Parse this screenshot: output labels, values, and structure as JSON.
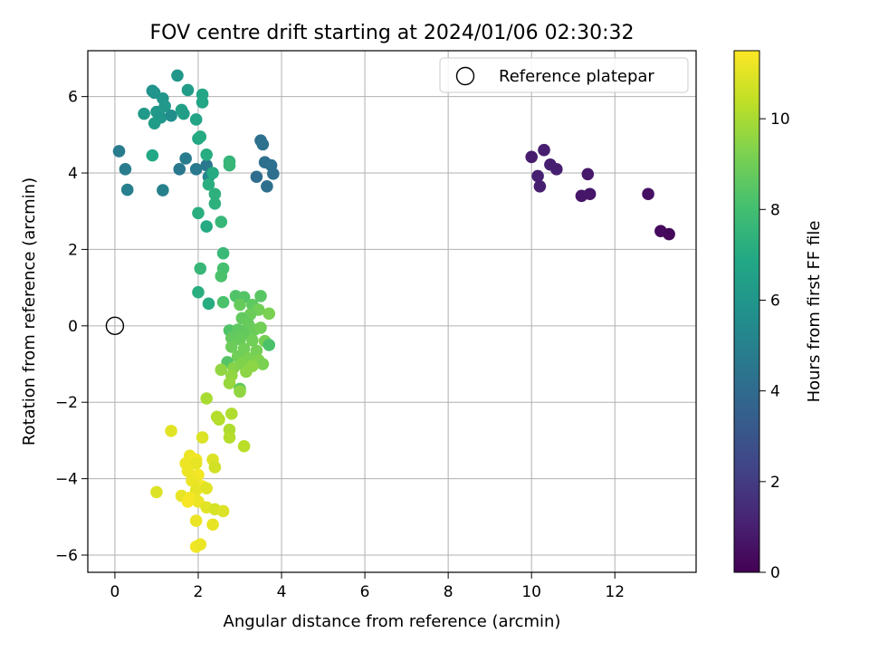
{
  "chart_data": {
    "type": "scatter",
    "title": "FOV centre drift starting at 2024/01/06 02:30:32",
    "xlabel": "Angular distance from reference (arcmin)",
    "ylabel": "Rotation from reference (arcmin)",
    "xlim": [
      -0.65,
      13.95
    ],
    "ylim": [
      -6.45,
      7.2
    ],
    "x_ticks": [
      0,
      2,
      4,
      6,
      8,
      10,
      12
    ],
    "x_tick_labels": [
      "0",
      "2",
      "4",
      "6",
      "8",
      "10",
      "12"
    ],
    "y_ticks": [
      -6,
      -4,
      -2,
      0,
      2,
      4,
      6
    ],
    "y_tick_labels": [
      "−6",
      "−4",
      "−2",
      "0",
      "2",
      "4",
      "6"
    ],
    "grid": true,
    "legend": {
      "placement": "top-right",
      "entries": [
        "Reference platepar"
      ]
    },
    "reference_point": {
      "label": "Reference platepar",
      "x": 0,
      "y": 0
    },
    "colorbar": {
      "label": "Hours from first FF file",
      "colormap": "viridis",
      "range": [
        0,
        11.5
      ],
      "ticks": [
        0,
        2,
        4,
        6,
        8,
        10
      ],
      "tick_labels": [
        "0",
        "2",
        "4",
        "6",
        "8",
        "10"
      ]
    },
    "points": [
      {
        "x": 10.0,
        "y": 4.42,
        "h": 0.9
      },
      {
        "x": 10.3,
        "y": 4.6,
        "h": 1.0
      },
      {
        "x": 10.45,
        "y": 4.22,
        "h": 1.0
      },
      {
        "x": 10.15,
        "y": 3.92,
        "h": 1.0
      },
      {
        "x": 10.6,
        "y": 4.1,
        "h": 1.0
      },
      {
        "x": 10.2,
        "y": 3.65,
        "h": 1.0
      },
      {
        "x": 11.35,
        "y": 3.97,
        "h": 0.8
      },
      {
        "x": 11.2,
        "y": 3.4,
        "h": 0.7
      },
      {
        "x": 11.4,
        "y": 3.45,
        "h": 0.7
      },
      {
        "x": 12.8,
        "y": 3.45,
        "h": 0.5
      },
      {
        "x": 13.1,
        "y": 2.48,
        "h": 0.3
      },
      {
        "x": 13.3,
        "y": 2.4,
        "h": 0.2
      },
      {
        "x": 3.5,
        "y": 4.85,
        "h": 4.2
      },
      {
        "x": 3.55,
        "y": 4.75,
        "h": 4.3
      },
      {
        "x": 3.6,
        "y": 4.28,
        "h": 4.2
      },
      {
        "x": 3.75,
        "y": 4.2,
        "h": 4.3
      },
      {
        "x": 3.4,
        "y": 3.9,
        "h": 4.1
      },
      {
        "x": 3.65,
        "y": 3.65,
        "h": 4.2
      },
      {
        "x": 3.8,
        "y": 3.98,
        "h": 4.2
      },
      {
        "x": 2.2,
        "y": 4.2,
        "h": 4.6
      },
      {
        "x": 1.95,
        "y": 4.1,
        "h": 4.7
      },
      {
        "x": 1.55,
        "y": 4.1,
        "h": 4.6
      },
      {
        "x": 1.7,
        "y": 4.38,
        "h": 4.8
      },
      {
        "x": 0.1,
        "y": 4.57,
        "h": 4.8
      },
      {
        "x": 0.25,
        "y": 4.1,
        "h": 4.8
      },
      {
        "x": 0.3,
        "y": 3.56,
        "h": 4.9
      },
      {
        "x": 1.15,
        "y": 3.55,
        "h": 5.0
      },
      {
        "x": 2.25,
        "y": 3.9,
        "h": 5.2
      },
      {
        "x": 0.9,
        "y": 6.15,
        "h": 5.8
      },
      {
        "x": 0.95,
        "y": 6.1,
        "h": 5.9
      },
      {
        "x": 1.5,
        "y": 6.55,
        "h": 6.0
      },
      {
        "x": 1.75,
        "y": 6.17,
        "h": 6.3
      },
      {
        "x": 2.1,
        "y": 6.05,
        "h": 6.8
      },
      {
        "x": 2.1,
        "y": 5.85,
        "h": 6.8
      },
      {
        "x": 1.15,
        "y": 5.95,
        "h": 6.0
      },
      {
        "x": 1.2,
        "y": 5.75,
        "h": 6.1
      },
      {
        "x": 0.7,
        "y": 5.55,
        "h": 6.2
      },
      {
        "x": 1.0,
        "y": 5.6,
        "h": 6.1
      },
      {
        "x": 1.05,
        "y": 5.55,
        "h": 6.2
      },
      {
        "x": 1.1,
        "y": 5.45,
        "h": 6.0
      },
      {
        "x": 1.35,
        "y": 5.5,
        "h": 5.6
      },
      {
        "x": 1.6,
        "y": 5.65,
        "h": 6.5
      },
      {
        "x": 1.65,
        "y": 5.55,
        "h": 6.4
      },
      {
        "x": 1.95,
        "y": 5.4,
        "h": 6.7
      },
      {
        "x": 0.95,
        "y": 5.3,
        "h": 6.3
      },
      {
        "x": 2.0,
        "y": 4.9,
        "h": 6.8
      },
      {
        "x": 2.05,
        "y": 4.95,
        "h": 7.0
      },
      {
        "x": 0.9,
        "y": 4.46,
        "h": 6.9
      },
      {
        "x": 2.2,
        "y": 4.48,
        "h": 7.1
      },
      {
        "x": 2.35,
        "y": 4.0,
        "h": 7.0
      },
      {
        "x": 2.75,
        "y": 4.3,
        "h": 7.5
      },
      {
        "x": 2.75,
        "y": 4.2,
        "h": 7.6
      },
      {
        "x": 2.25,
        "y": 3.7,
        "h": 7.2
      },
      {
        "x": 2.4,
        "y": 3.45,
        "h": 7.3
      },
      {
        "x": 2.4,
        "y": 3.2,
        "h": 7.3
      },
      {
        "x": 2.0,
        "y": 2.95,
        "h": 7.2
      },
      {
        "x": 2.2,
        "y": 2.6,
        "h": 7.0
      },
      {
        "x": 2.55,
        "y": 2.72,
        "h": 7.6
      },
      {
        "x": 2.6,
        "y": 1.9,
        "h": 7.7
      },
      {
        "x": 2.05,
        "y": 1.5,
        "h": 7.6
      },
      {
        "x": 2.6,
        "y": 1.5,
        "h": 8.1
      },
      {
        "x": 2.55,
        "y": 1.3,
        "h": 8.2
      },
      {
        "x": 2.0,
        "y": 0.88,
        "h": 7.2
      },
      {
        "x": 2.25,
        "y": 0.58,
        "h": 7.1
      },
      {
        "x": 2.6,
        "y": 0.62,
        "h": 8.2
      },
      {
        "x": 2.9,
        "y": 0.78,
        "h": 8.3
      },
      {
        "x": 3.1,
        "y": 0.75,
        "h": 8.4
      },
      {
        "x": 3.5,
        "y": 0.78,
        "h": 8.5
      },
      {
        "x": 3.3,
        "y": 0.55,
        "h": 8.6
      },
      {
        "x": 3.0,
        "y": 0.55,
        "h": 8.8
      },
      {
        "x": 3.45,
        "y": 0.42,
        "h": 9.0
      },
      {
        "x": 3.7,
        "y": 0.32,
        "h": 9.2
      },
      {
        "x": 3.25,
        "y": 0.3,
        "h": 8.9
      },
      {
        "x": 3.05,
        "y": 0.2,
        "h": 8.7
      },
      {
        "x": 3.2,
        "y": 0.05,
        "h": 8.8
      },
      {
        "x": 2.75,
        "y": -0.12,
        "h": 8.3
      },
      {
        "x": 2.95,
        "y": -0.1,
        "h": 8.6
      },
      {
        "x": 3.1,
        "y": -0.2,
        "h": 8.7
      },
      {
        "x": 3.35,
        "y": -0.1,
        "h": 8.9
      },
      {
        "x": 3.5,
        "y": -0.05,
        "h": 9.0
      },
      {
        "x": 2.8,
        "y": -0.32,
        "h": 8.7
      },
      {
        "x": 3.0,
        "y": -0.35,
        "h": 8.8
      },
      {
        "x": 3.3,
        "y": -0.38,
        "h": 9.0
      },
      {
        "x": 3.6,
        "y": -0.4,
        "h": 9.1
      },
      {
        "x": 3.7,
        "y": -0.5,
        "h": 8.2
      },
      {
        "x": 2.8,
        "y": -0.55,
        "h": 8.9
      },
      {
        "x": 3.1,
        "y": -0.6,
        "h": 9.0
      },
      {
        "x": 3.4,
        "y": -0.65,
        "h": 9.1
      },
      {
        "x": 2.95,
        "y": -0.8,
        "h": 9.0
      },
      {
        "x": 3.2,
        "y": -0.85,
        "h": 9.2
      },
      {
        "x": 3.45,
        "y": -0.9,
        "h": 9.3
      },
      {
        "x": 3.55,
        "y": -1.0,
        "h": 9.2
      },
      {
        "x": 2.7,
        "y": -0.95,
        "h": 8.4
      },
      {
        "x": 2.85,
        "y": -1.1,
        "h": 9.4
      },
      {
        "x": 3.05,
        "y": -1.0,
        "h": 9.3
      },
      {
        "x": 3.3,
        "y": -1.05,
        "h": 9.5
      },
      {
        "x": 2.55,
        "y": -1.15,
        "h": 9.6
      },
      {
        "x": 3.15,
        "y": -1.2,
        "h": 9.5
      },
      {
        "x": 2.8,
        "y": -1.3,
        "h": 9.6
      },
      {
        "x": 2.75,
        "y": -1.5,
        "h": 9.7
      },
      {
        "x": 3.0,
        "y": -1.65,
        "h": 8.7
      },
      {
        "x": 3.0,
        "y": -1.72,
        "h": 9.6
      },
      {
        "x": 2.2,
        "y": -1.9,
        "h": 10.0
      },
      {
        "x": 2.8,
        "y": -2.3,
        "h": 10.1
      },
      {
        "x": 2.45,
        "y": -2.38,
        "h": 10.2
      },
      {
        "x": 2.5,
        "y": -2.45,
        "h": 10.2
      },
      {
        "x": 2.75,
        "y": -2.72,
        "h": 10.1
      },
      {
        "x": 2.75,
        "y": -2.92,
        "h": 10.2
      },
      {
        "x": 3.1,
        "y": -3.15,
        "h": 10.3
      },
      {
        "x": 1.35,
        "y": -2.75,
        "h": 11.0
      },
      {
        "x": 2.1,
        "y": -2.92,
        "h": 10.9
      },
      {
        "x": 1.8,
        "y": -3.4,
        "h": 11.2
      },
      {
        "x": 1.95,
        "y": -3.5,
        "h": 11.3
      },
      {
        "x": 1.7,
        "y": -3.6,
        "h": 11.2
      },
      {
        "x": 1.95,
        "y": -3.6,
        "h": 11.1
      },
      {
        "x": 1.75,
        "y": -3.8,
        "h": 11.2
      },
      {
        "x": 2.35,
        "y": -3.5,
        "h": 10.9
      },
      {
        "x": 2.4,
        "y": -3.7,
        "h": 10.7
      },
      {
        "x": 2.0,
        "y": -3.9,
        "h": 11.3
      },
      {
        "x": 1.85,
        "y": -4.05,
        "h": 11.2
      },
      {
        "x": 2.1,
        "y": -4.2,
        "h": 11.3
      },
      {
        "x": 1.95,
        "y": -4.3,
        "h": 11.1
      },
      {
        "x": 2.2,
        "y": -4.25,
        "h": 11.0
      },
      {
        "x": 1.0,
        "y": -4.35,
        "h": 10.9
      },
      {
        "x": 1.6,
        "y": -4.45,
        "h": 11.1
      },
      {
        "x": 1.8,
        "y": -4.5,
        "h": 11.3
      },
      {
        "x": 2.0,
        "y": -4.6,
        "h": 11.2
      },
      {
        "x": 1.75,
        "y": -4.6,
        "h": 11.4
      },
      {
        "x": 2.2,
        "y": -4.75,
        "h": 11.0
      },
      {
        "x": 2.4,
        "y": -4.8,
        "h": 10.8
      },
      {
        "x": 2.6,
        "y": -4.85,
        "h": 10.9
      },
      {
        "x": 1.95,
        "y": -5.1,
        "h": 11.2
      },
      {
        "x": 2.35,
        "y": -5.2,
        "h": 11.1
      },
      {
        "x": 1.95,
        "y": -5.78,
        "h": 11.3
      },
      {
        "x": 2.05,
        "y": -5.72,
        "h": 11.2
      }
    ]
  }
}
